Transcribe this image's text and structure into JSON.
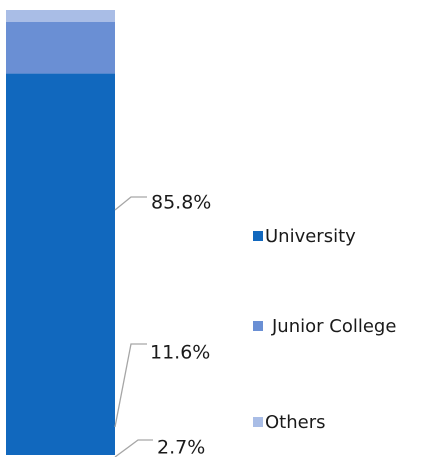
{
  "chart_data": {
    "type": "bar",
    "stacked": true,
    "normalized_percent": true,
    "categories": [
      ""
    ],
    "series": [
      {
        "name": "University",
        "values": [
          85.8
        ],
        "label": "85.8%",
        "color": "#1168be"
      },
      {
        "name": "Junior College",
        "values": [
          11.6
        ],
        "label": "11.6%",
        "color": "#6a8fd4"
      },
      {
        "name": "Others",
        "values": [
          2.7
        ],
        "label": "2.7%",
        "color": "#a9bde6"
      }
    ],
    "ylim": [
      0,
      100
    ],
    "title": "",
    "xlabel": "",
    "ylabel": "",
    "grid": false,
    "legend": {
      "position": "right"
    },
    "data_labels": true
  }
}
